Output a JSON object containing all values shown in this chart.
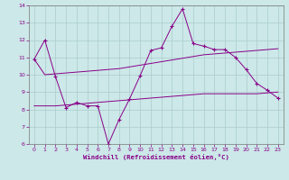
{
  "x": [
    0,
    1,
    2,
    3,
    4,
    5,
    6,
    7,
    8,
    9,
    10,
    11,
    12,
    13,
    14,
    15,
    16,
    17,
    18,
    19,
    20,
    21,
    22,
    23
  ],
  "line_zigzag": [
    10.9,
    12.0,
    9.9,
    8.1,
    8.4,
    8.2,
    8.2,
    6.0,
    7.4,
    8.6,
    9.95,
    11.4,
    11.55,
    12.8,
    13.8,
    11.8,
    11.65,
    11.45,
    11.45,
    11.0,
    10.3,
    9.5,
    9.1,
    8.65
  ],
  "line_upper": [
    10.9,
    10.0,
    10.05,
    10.1,
    10.15,
    10.2,
    10.25,
    10.3,
    10.35,
    10.45,
    10.55,
    10.65,
    10.75,
    10.85,
    10.95,
    11.05,
    11.15,
    11.2,
    11.25,
    11.3,
    11.35,
    11.4,
    11.45,
    11.5
  ],
  "line_lower": [
    8.2,
    8.2,
    8.2,
    8.25,
    8.3,
    8.35,
    8.4,
    8.45,
    8.5,
    8.55,
    8.6,
    8.65,
    8.7,
    8.75,
    8.8,
    8.85,
    8.9,
    8.9,
    8.9,
    8.9,
    8.9,
    8.9,
    8.95,
    9.0
  ],
  "bg_color": "#cce8e8",
  "line_color": "#880088",
  "grid_color": "#aacccc",
  "xlabel": "Windchill (Refroidissement éolien,°C)",
  "ylim": [
    6,
    14
  ],
  "xlim": [
    -0.5,
    23.5
  ],
  "yticks": [
    6,
    7,
    8,
    9,
    10,
    11,
    12,
    13,
    14
  ],
  "xticks": [
    0,
    1,
    2,
    3,
    4,
    5,
    6,
    7,
    8,
    9,
    10,
    11,
    12,
    13,
    14,
    15,
    16,
    17,
    18,
    19,
    20,
    21,
    22,
    23
  ]
}
